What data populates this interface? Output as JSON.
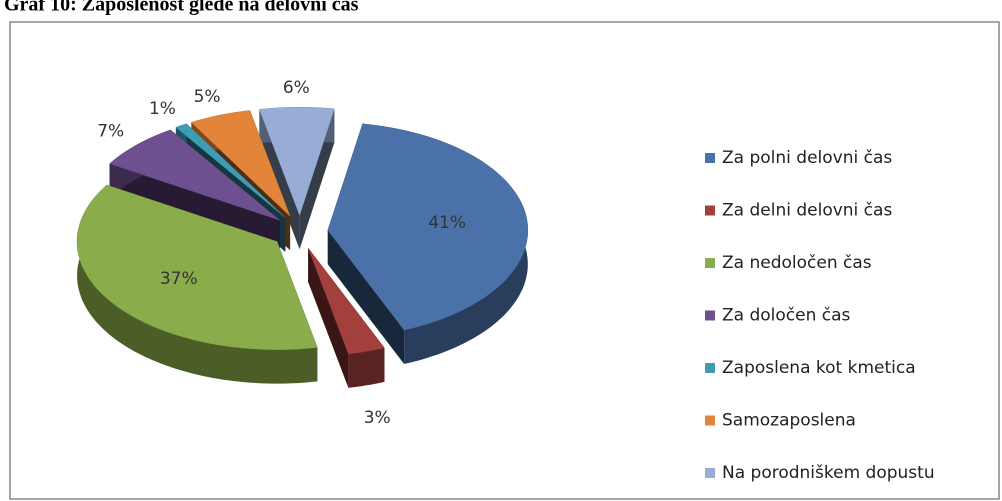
{
  "chart_data": {
    "type": "pie3d",
    "title": "Graf 10: Zaposlenost glede na delovni čas",
    "categories": [
      "Za polni delovni čas",
      "Za delni delovni čas",
      "Za nedoločen čas",
      "Za določen čas",
      "Zaposlena kot kmetica",
      "Samozaposlena",
      "Na porodniškem dopustu"
    ],
    "values": [
      41,
      3,
      37,
      7,
      1,
      5,
      6
    ],
    "value_labels": [
      "41%",
      "3%",
      "37%",
      "7%",
      "1%",
      "5%",
      "6%"
    ],
    "colors": [
      "#4a72a8",
      "#a3403d",
      "#8aac4a",
      "#6e4f8f",
      "#3f9cb5",
      "#e2843a",
      "#98add6"
    ],
    "legend": "right"
  }
}
